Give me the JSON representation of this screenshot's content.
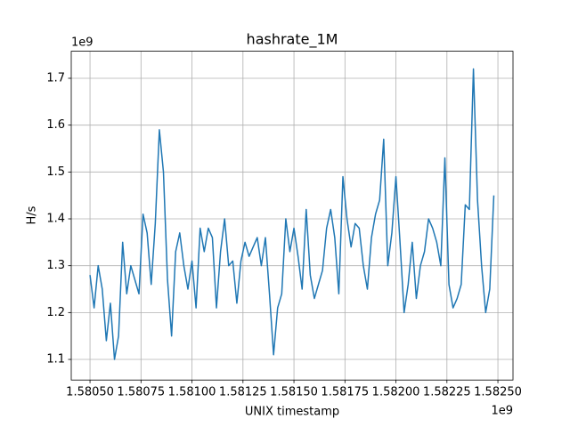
{
  "chart_data": {
    "type": "line",
    "title": "hashrate_1M",
    "x_label": "UNIX timestamp",
    "y_label": "H/s",
    "x_offset_label": "1e9",
    "y_offset_label": "1e9",
    "x": [
      1.5805,
      1.58052,
      1.58054,
      1.58056,
      1.58058,
      1.5806,
      1.58062,
      1.58064,
      1.58066,
      1.58068,
      1.5807,
      1.58072,
      1.58074,
      1.58076,
      1.58078,
      1.5808,
      1.58082,
      1.58084,
      1.58086,
      1.58088,
      1.5809,
      1.58092,
      1.58094,
      1.58096,
      1.58098,
      1.581,
      1.58102,
      1.58104,
      1.58106,
      1.58108,
      1.5811,
      1.58112,
      1.58114,
      1.58116,
      1.58118,
      1.5812,
      1.58122,
      1.58124,
      1.58126,
      1.58128,
      1.5813,
      1.58132,
      1.58134,
      1.58136,
      1.58138,
      1.5814,
      1.58142,
      1.58144,
      1.58146,
      1.58148,
      1.5815,
      1.58152,
      1.58154,
      1.58156,
      1.58158,
      1.5816,
      1.58162,
      1.58164,
      1.58166,
      1.58168,
      1.5817,
      1.58172,
      1.58174,
      1.58176,
      1.58178,
      1.5818,
      1.58182,
      1.58184,
      1.58186,
      1.58188,
      1.5819,
      1.58192,
      1.58194,
      1.58196,
      1.58198,
      1.582,
      1.58202,
      1.58204,
      1.58206,
      1.58208,
      1.5821,
      1.58212,
      1.58214,
      1.58216,
      1.58218,
      1.5822,
      1.58222,
      1.58224,
      1.58226,
      1.58228,
      1.5823,
      1.58232,
      1.58234,
      1.58236,
      1.58238,
      1.5824,
      1.58242,
      1.58244,
      1.58246,
      1.58248
    ],
    "values": [
      1.28,
      1.21,
      1.3,
      1.25,
      1.14,
      1.22,
      1.1,
      1.15,
      1.35,
      1.24,
      1.3,
      1.27,
      1.24,
      1.41,
      1.37,
      1.26,
      1.39,
      1.59,
      1.5,
      1.27,
      1.15,
      1.33,
      1.37,
      1.3,
      1.25,
      1.31,
      1.21,
      1.38,
      1.33,
      1.38,
      1.36,
      1.21,
      1.33,
      1.4,
      1.3,
      1.31,
      1.22,
      1.31,
      1.35,
      1.32,
      1.34,
      1.36,
      1.3,
      1.36,
      1.24,
      1.11,
      1.21,
      1.24,
      1.4,
      1.33,
      1.38,
      1.32,
      1.25,
      1.42,
      1.28,
      1.23,
      1.26,
      1.29,
      1.38,
      1.42,
      1.36,
      1.24,
      1.49,
      1.4,
      1.34,
      1.39,
      1.38,
      1.3,
      1.25,
      1.36,
      1.41,
      1.44,
      1.57,
      1.3,
      1.37,
      1.49,
      1.35,
      1.2,
      1.26,
      1.35,
      1.23,
      1.3,
      1.33,
      1.4,
      1.38,
      1.35,
      1.3,
      1.53,
      1.26,
      1.21,
      1.23,
      1.26,
      1.43,
      1.42,
      1.72,
      1.44,
      1.3,
      1.2,
      1.25,
      1.45
    ],
    "color": "#1f77b4",
    "xlim": [
      1.580408,
      1.582574
    ],
    "ylim": [
      1.056,
      1.7577
    ],
    "xticks": [
      {
        "value": 1.5805,
        "label": "1.58050"
      },
      1.58075,
      {
        "value": 1.581,
        "label": "1.58100"
      },
      1.58125,
      {
        "value": 1.5815,
        "label": "1.58150"
      },
      1.58175,
      {
        "value": 1.582,
        "label": "1.58200"
      },
      1.58225,
      {
        "value": 1.5825,
        "label": "1.58250"
      }
    ],
    "yticks": [
      1.1,
      1.2,
      1.3,
      1.4,
      1.5,
      1.6,
      1.7
    ],
    "grid": true
  }
}
